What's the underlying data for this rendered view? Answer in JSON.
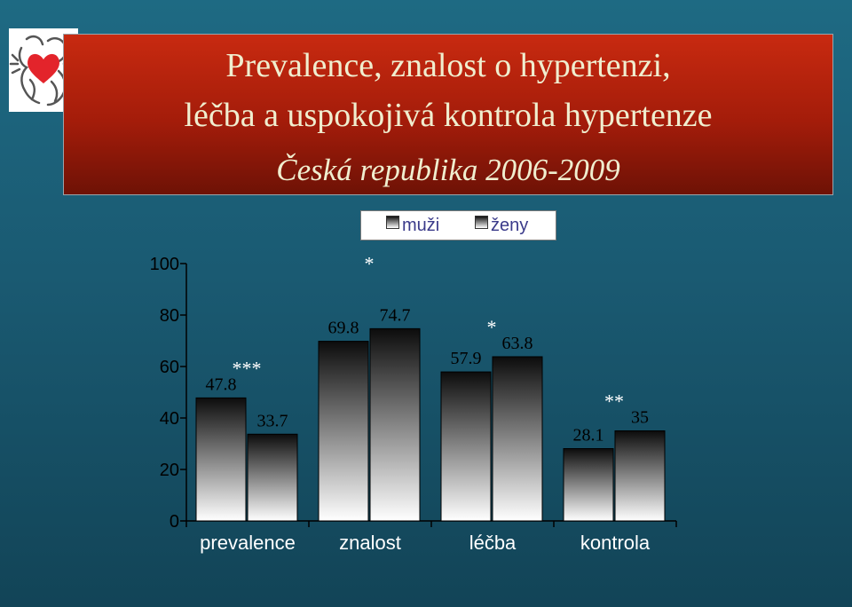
{
  "header": {
    "title_line1": "Prevalence, znalost o hypertenzi,",
    "title_line2": "léčba a uspokojivá kontrola hypertenze",
    "subtitle": "Česká republika 2006-2009"
  },
  "logo": {
    "icon": "czech-lion-heart-logo"
  },
  "colors": {
    "background": "#1a5a72",
    "header": "#b0200c",
    "title_text": "#f0eecf",
    "category_text": "#ffffff"
  },
  "chart_data": {
    "type": "bar",
    "categories": [
      "prevalence",
      "znalost",
      "léčba",
      "kontrola"
    ],
    "series": [
      {
        "name": "muži",
        "values": [
          47.8,
          69.8,
          57.9,
          28.1
        ]
      },
      {
        "name": "ženy",
        "values": [
          33.7,
          74.7,
          63.8,
          35
        ]
      }
    ],
    "data_labels": [
      [
        "47.8",
        "33.7"
      ],
      [
        "69.8",
        "74.7"
      ],
      [
        "57.9",
        "63.8"
      ],
      [
        "28.1",
        "35"
      ]
    ],
    "significance": [
      "***",
      "*",
      "*",
      "**"
    ],
    "ylim": [
      0,
      100
    ],
    "yticks": [
      0,
      20,
      40,
      60,
      80,
      100
    ],
    "ytick_labels": [
      "0",
      "20",
      "40",
      "60",
      "80",
      "100"
    ],
    "legend": {
      "position": "top-right",
      "entries": [
        "muži",
        "ženy"
      ]
    },
    "grid": false
  }
}
